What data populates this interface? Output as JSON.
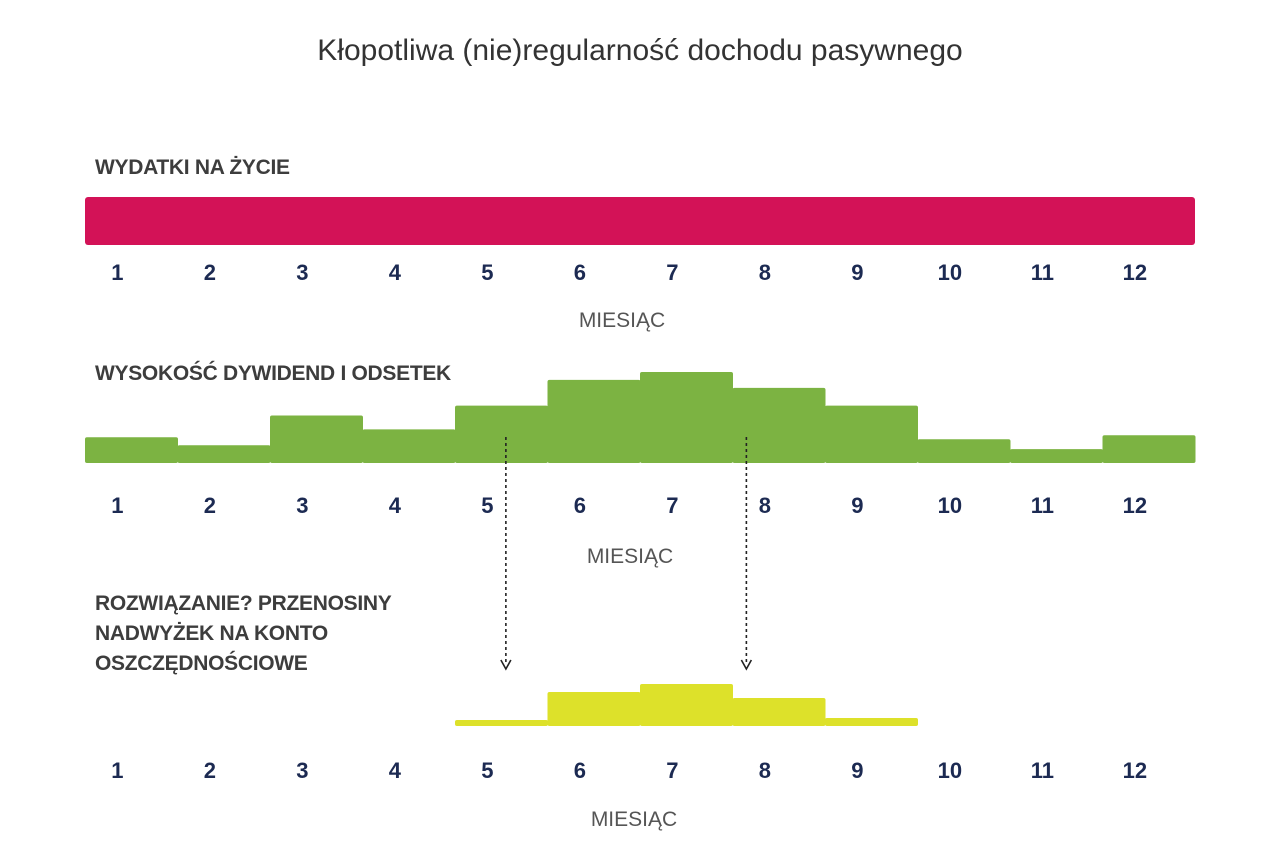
{
  "chart_data": {
    "type": "bar",
    "title": "Kłopotliwa (nie)regularność dochodu pasywnego",
    "categories": [
      "1",
      "2",
      "3",
      "4",
      "5",
      "6",
      "7",
      "8",
      "9",
      "10",
      "11",
      "12"
    ],
    "xlabel": "MIESIĄC",
    "panels": [
      {
        "name": "WYDATKI NA ŻYCIE",
        "color": "#d31257",
        "values": [
          1,
          1,
          1,
          1,
          1,
          1,
          1,
          1,
          1,
          1,
          1,
          1
        ]
      },
      {
        "name": "WYSOKOŚĆ DYWIDEND I ODSETEK",
        "color": "#7cb342",
        "values": [
          1.3,
          0.9,
          2.4,
          1.7,
          2.9,
          4.2,
          4.6,
          3.8,
          2.9,
          1.2,
          0.7,
          1.4
        ]
      },
      {
        "name_lines": [
          "ROZWIĄZANIE? PRZENOSINY",
          "NADWYŻEK NA KONTO",
          "OSZCZĘDNOŚCIOWE"
        ],
        "color": "#dde12a",
        "values": [
          0,
          0,
          0,
          0,
          0.3,
          1.7,
          2.1,
          1.4,
          0.4,
          0,
          0,
          0
        ]
      }
    ],
    "arrows": [
      {
        "from_month": 5,
        "to_month": 5
      },
      {
        "from_month": 7.6,
        "to_month": 7.6
      }
    ]
  }
}
